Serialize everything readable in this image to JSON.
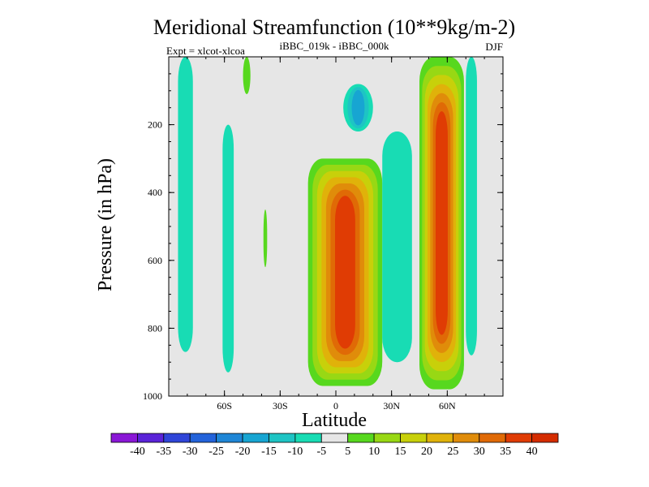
{
  "chart_data": {
    "type": "heatmap",
    "title": "Meridional Streamfunction (10**9kg/m-2)",
    "subtitle_center": "iBBC_019k - iBBC_000k",
    "subtitle_left": "Expt = xlcot-xlcoa",
    "subtitle_right": "DJF",
    "xlabel": "Latitude",
    "ylabel": "Pressure (in hPa)",
    "xlim": [
      -90,
      90
    ],
    "ylim": [
      1000,
      0
    ],
    "x_ticks": [
      {
        "value": -60,
        "label": "60S"
      },
      {
        "value": -30,
        "label": "30S"
      },
      {
        "value": 0,
        "label": "0"
      },
      {
        "value": 30,
        "label": "30N"
      },
      {
        "value": 60,
        "label": "60N"
      }
    ],
    "y_ticks": [
      {
        "value": 200,
        "label": "200"
      },
      {
        "value": 400,
        "label": "400"
      },
      {
        "value": 600,
        "label": "600"
      },
      {
        "value": 800,
        "label": "800"
      },
      {
        "value": 1000,
        "label": "1000"
      }
    ],
    "colorbar": {
      "labels": [
        "-40",
        "-35",
        "-30",
        "-25",
        "-20",
        "-15",
        "-10",
        "-5",
        "5",
        "10",
        "15",
        "20",
        "25",
        "30",
        "35",
        "40"
      ],
      "colors": [
        "#8a17d6",
        "#5a23d8",
        "#2f45d8",
        "#2363da",
        "#1f86d6",
        "#17a5d2",
        "#1ec4c4",
        "#18dcb4",
        "#e6e6e6",
        "#57d81e",
        "#98d814",
        "#c8d00a",
        "#e0b20a",
        "#e08c0a",
        "#e06a06",
        "#e03c04",
        "#d42c00"
      ]
    },
    "missing_color": "#e6e6e6",
    "features": [
      {
        "name": "hadley-cell-south-of-equator",
        "lat_center": 5,
        "lat_halfwidth": 20,
        "p_top": 300,
        "p_bottom": 970,
        "peak_value": 40
      },
      {
        "name": "northern-subtropical-column",
        "lat_center": 57,
        "lat_halfwidth": 12,
        "p_top": 0,
        "p_bottom": 980,
        "peak_value": 40
      },
      {
        "name": "tropical-upper-negative",
        "lat_center": 12,
        "lat_halfwidth": 8,
        "p_top": 80,
        "p_bottom": 220,
        "peak_value": -18
      },
      {
        "name": "northern-tropics-negative-band",
        "lat_center": 33,
        "lat_halfwidth": 8,
        "p_top": 220,
        "p_bottom": 900,
        "peak_value": -12
      },
      {
        "name": "southern-high-latitude-negative",
        "lat_center": -81,
        "lat_halfwidth": 4,
        "p_top": 0,
        "p_bottom": 870,
        "peak_value": -8
      },
      {
        "name": "southern-midlatitude-negative",
        "lat_center": -58,
        "lat_halfwidth": 3,
        "p_top": 200,
        "p_bottom": 930,
        "peak_value": -8
      },
      {
        "name": "northern-high-latitude-negative",
        "lat_center": 73,
        "lat_halfwidth": 3,
        "p_top": 0,
        "p_bottom": 880,
        "peak_value": -10
      },
      {
        "name": "southern-upper-positive",
        "lat_center": -48,
        "lat_halfwidth": 2,
        "p_top": 0,
        "p_bottom": 110,
        "peak_value": 8
      },
      {
        "name": "southern-midlevel-positive",
        "lat_center": -38,
        "lat_halfwidth": 1,
        "p_top": 450,
        "p_bottom": 620,
        "peak_value": 8
      }
    ]
  }
}
